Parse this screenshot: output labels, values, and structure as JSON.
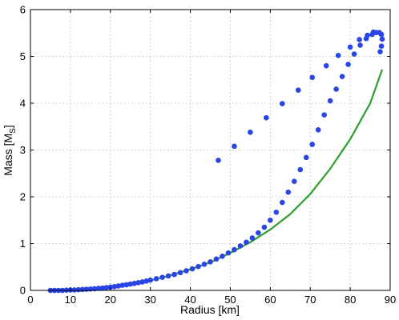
{
  "chart_data": {
    "type": "scatter",
    "xlabel": "Radius [km]",
    "ylabel_main": "Mass [M",
    "ylabel_sub": "S",
    "ylabel_end": "]",
    "xlim": [
      0,
      90
    ],
    "ylim": [
      0,
      6
    ],
    "xticks": [
      0,
      10,
      20,
      30,
      40,
      50,
      60,
      70,
      80,
      90
    ],
    "yticks": [
      0,
      1,
      2,
      3,
      4,
      5,
      6
    ],
    "grid": true,
    "colors": {
      "points": "#2a45e6",
      "line": "#2ca02c"
    },
    "series": [
      {
        "kind": "scatter",
        "points": [
          [
            5.0,
            0.0
          ],
          [
            6.0,
            0.0
          ],
          [
            7.0,
            0.0
          ],
          [
            8.0,
            0.0
          ],
          [
            9.0,
            0.005
          ],
          [
            10.0,
            0.008
          ],
          [
            11.0,
            0.01
          ],
          [
            12.0,
            0.015
          ],
          [
            13.0,
            0.02
          ],
          [
            14.0,
            0.025
          ],
          [
            15.0,
            0.03
          ],
          [
            16.0,
            0.035
          ],
          [
            17.0,
            0.045
          ],
          [
            18.0,
            0.05
          ],
          [
            19.0,
            0.06
          ],
          [
            20.0,
            0.07
          ],
          [
            21.0,
            0.08
          ],
          [
            22.0,
            0.095
          ],
          [
            23.0,
            0.11
          ],
          [
            24.0,
            0.12
          ],
          [
            25.0,
            0.135
          ],
          [
            26.0,
            0.15
          ],
          [
            27.0,
            0.165
          ],
          [
            28.0,
            0.18
          ],
          [
            29.0,
            0.2
          ],
          [
            30.0,
            0.22
          ],
          [
            31.5,
            0.25
          ],
          [
            33.0,
            0.28
          ],
          [
            34.5,
            0.31
          ],
          [
            36.0,
            0.34
          ],
          [
            37.5,
            0.38
          ],
          [
            39.0,
            0.42
          ],
          [
            40.5,
            0.46
          ],
          [
            42.0,
            0.51
          ],
          [
            43.5,
            0.56
          ],
          [
            45.0,
            0.61
          ],
          [
            46.5,
            0.67
          ],
          [
            48.0,
            0.73
          ],
          [
            49.5,
            0.8
          ],
          [
            51.0,
            0.87
          ],
          [
            52.5,
            0.95
          ],
          [
            54.0,
            1.03
          ],
          [
            55.5,
            1.12
          ],
          [
            57.0,
            1.23
          ],
          [
            58.5,
            1.35
          ],
          [
            60.0,
            1.5
          ],
          [
            61.5,
            1.67
          ],
          [
            63.0,
            1.88
          ],
          [
            64.5,
            2.1
          ],
          [
            66.0,
            2.33
          ],
          [
            67.5,
            2.58
          ],
          [
            69.0,
            2.84
          ],
          [
            70.5,
            3.12
          ],
          [
            72.0,
            3.43
          ],
          [
            73.5,
            3.75
          ],
          [
            75.0,
            4.05
          ],
          [
            76.5,
            4.3
          ],
          [
            78.0,
            4.57
          ],
          [
            79.5,
            4.83
          ],
          [
            81.0,
            5.05
          ],
          [
            82.5,
            5.24
          ],
          [
            84.0,
            5.38
          ],
          [
            85.5,
            5.47
          ],
          [
            86.5,
            5.51
          ],
          [
            87.3,
            5.51
          ],
          [
            87.8,
            5.47
          ],
          [
            88.0,
            5.37
          ],
          [
            87.8,
            5.22
          ],
          [
            87.5,
            5.1
          ],
          [
            85.8,
            5.52
          ],
          [
            84.3,
            5.45
          ],
          [
            82.3,
            5.36
          ],
          [
            80.0,
            5.2
          ],
          [
            77.0,
            5.02
          ],
          [
            74.0,
            4.8
          ],
          [
            70.5,
            4.55
          ],
          [
            67.0,
            4.28
          ],
          [
            63.0,
            3.99
          ],
          [
            59.0,
            3.69
          ],
          [
            55.0,
            3.38
          ],
          [
            51.0,
            3.08
          ],
          [
            47.0,
            2.78
          ]
        ]
      },
      {
        "kind": "line",
        "points": [
          [
            5,
            0
          ],
          [
            10,
            0.008
          ],
          [
            15,
            0.028
          ],
          [
            20,
            0.065
          ],
          [
            25,
            0.125
          ],
          [
            30,
            0.21
          ],
          [
            35,
            0.32
          ],
          [
            40,
            0.45
          ],
          [
            45,
            0.6
          ],
          [
            50,
            0.8
          ],
          [
            55,
            1.03
          ],
          [
            60,
            1.3
          ],
          [
            65,
            1.63
          ],
          [
            70,
            2.06
          ],
          [
            75,
            2.6
          ],
          [
            80,
            3.23
          ],
          [
            85,
            4.0
          ],
          [
            88,
            4.72
          ]
        ]
      }
    ]
  }
}
